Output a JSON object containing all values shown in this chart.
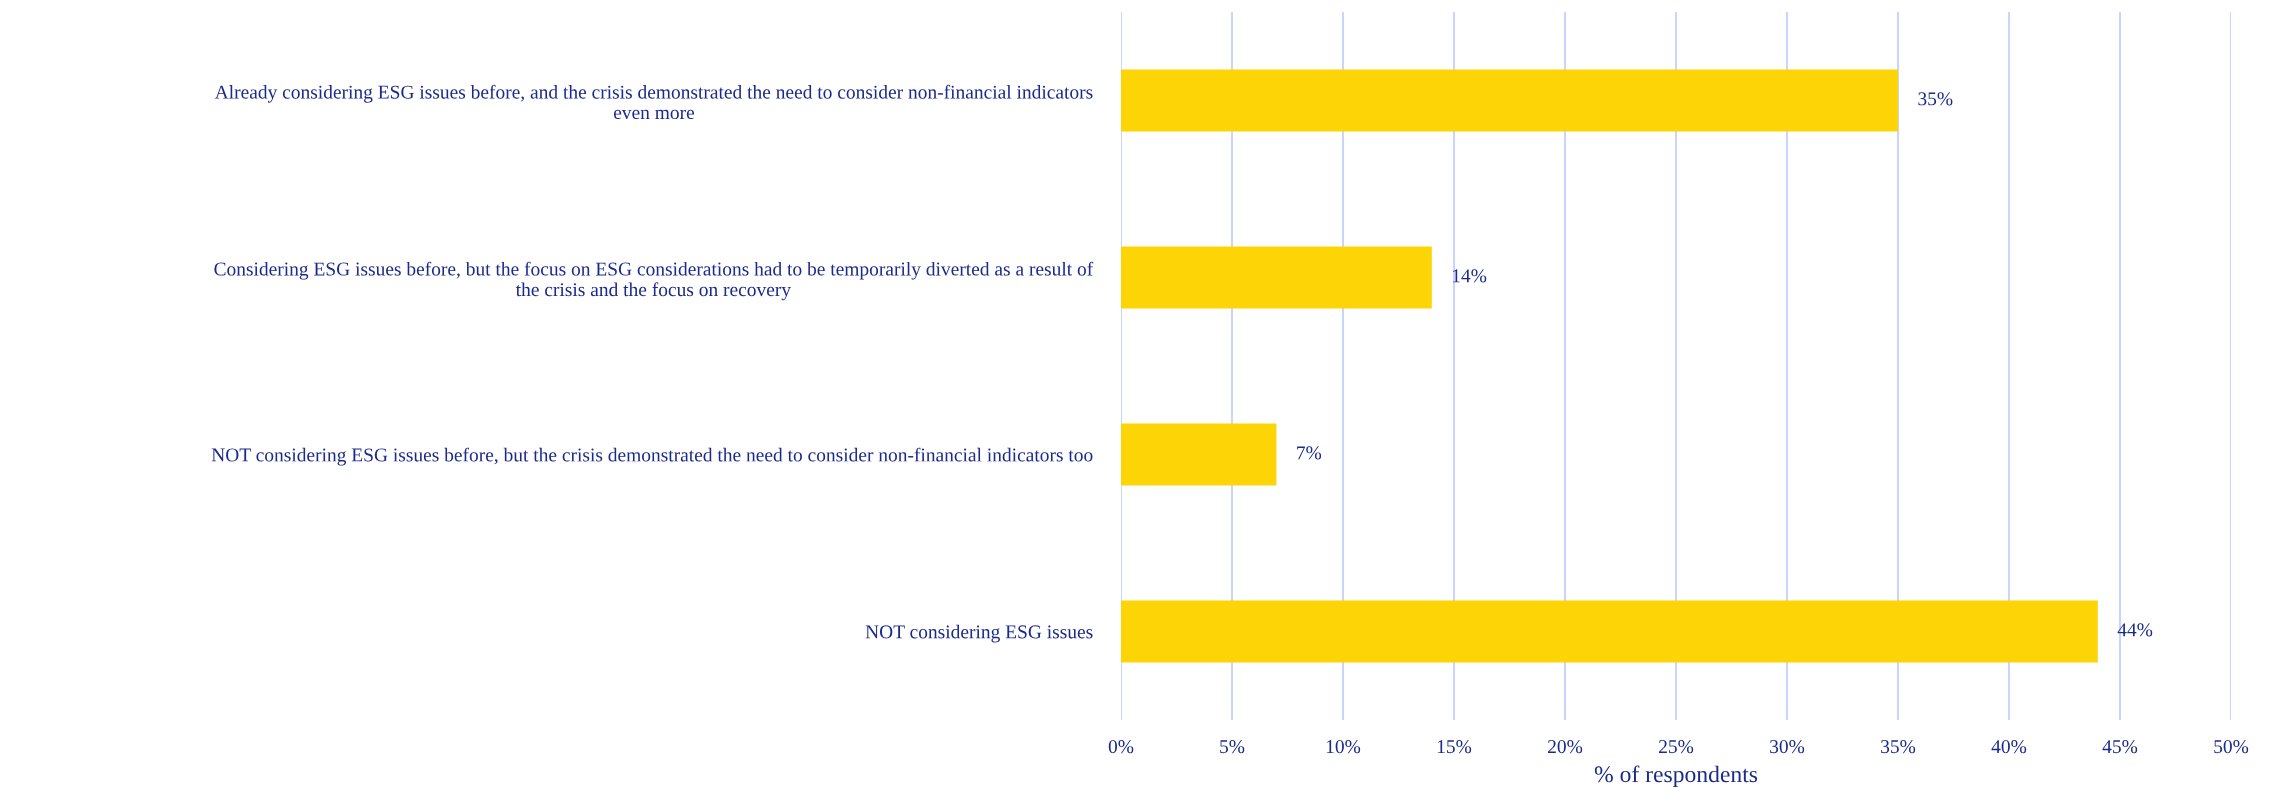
{
  "chart_data": {
    "type": "bar",
    "orientation": "horizontal",
    "xlabel": "% of respondents",
    "categories": [
      "Already considering ESG issues before, and the crisis demonstrated the need to consider non-financial indicators\neven more",
      "Considering ESG issues before, but the focus on ESG considerations had to be temporarily diverted as a result of\nthe crisis and the focus on recovery",
      "NOT considering ESG issues before, but the crisis demonstrated the need to consider non-financial indicators too",
      "NOT considering ESG issues"
    ],
    "values": [
      35,
      14,
      7,
      44
    ],
    "value_labels": [
      "35%",
      "14%",
      "7%",
      "44%"
    ],
    "color": "#fdd406",
    "xlim": [
      0,
      50
    ],
    "xticks": [
      {
        "value": 0,
        "label": "0%"
      },
      {
        "value": 5,
        "label": "5%"
      },
      {
        "value": 10,
        "label": "10%"
      },
      {
        "value": 15,
        "label": "15%"
      },
      {
        "value": 20,
        "label": "20%"
      },
      {
        "value": 25,
        "label": "25%"
      },
      {
        "value": 30,
        "label": "30%"
      },
      {
        "value": 35,
        "label": "35%"
      },
      {
        "value": 40,
        "label": "40%"
      },
      {
        "value": 45,
        "label": "45%"
      },
      {
        "value": 50,
        "label": "50%"
      }
    ],
    "grid": "x",
    "legend": false
  }
}
